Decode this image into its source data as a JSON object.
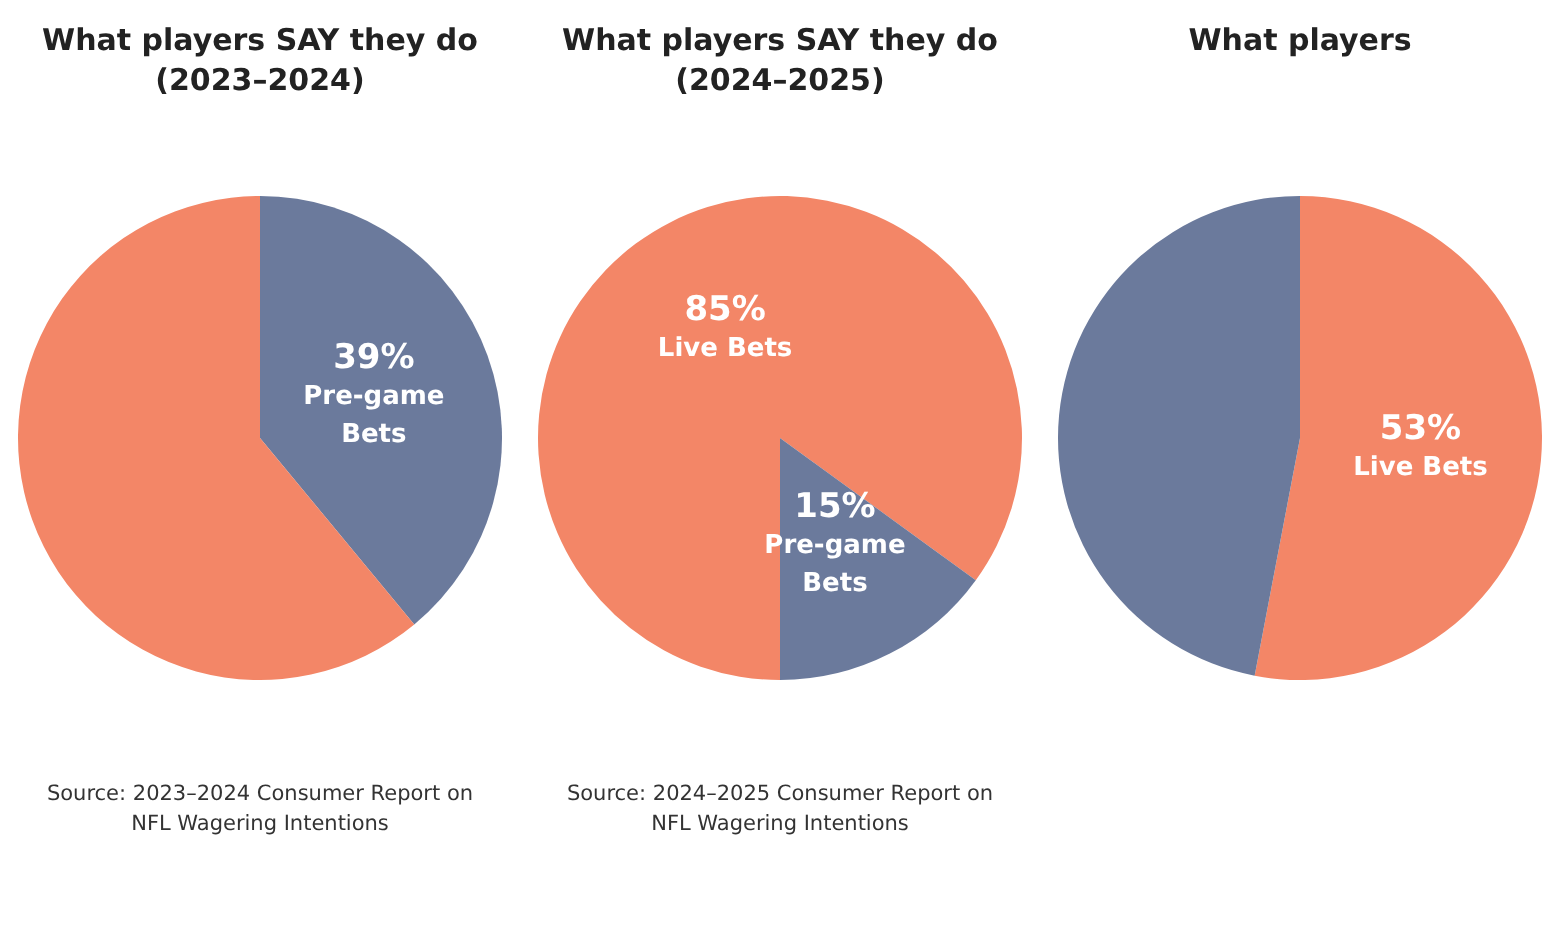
{
  "chart_data": [
    {
      "type": "pie",
      "title": "What players SAY they do (2023–2024)",
      "categories": [
        "Pre-game Bets",
        null
      ],
      "values": [
        39,
        61
      ],
      "colors": [
        "#6b7a9c",
        "#f38667"
      ],
      "value_labels": [
        "39%",
        null
      ],
      "annotations": [
        "Source: 2023–2024 Consumer Report on NFL Wagering Intentions"
      ],
      "legend": false
    },
    {
      "type": "pie",
      "title": "What players SAY they do (2024–2025)",
      "categories": [
        "Live Bets",
        "Pre-game Bets"
      ],
      "values": [
        85,
        15
      ],
      "colors": [
        "#f38667",
        "#6b7a9c"
      ],
      "value_labels": [
        "85%",
        "15%"
      ],
      "annotations": [
        "Source: 2024–2025 Consumer Report on NFL Wagering Intentions"
      ],
      "legend": false
    },
    {
      "type": "pie",
      "title": "What players",
      "categories": [
        "Live Bets",
        null
      ],
      "values": [
        53,
        47
      ],
      "colors": [
        "#f38667",
        "#6b7a9c"
      ],
      "value_labels": [
        "53%",
        null
      ],
      "legend": false
    }
  ]
}
